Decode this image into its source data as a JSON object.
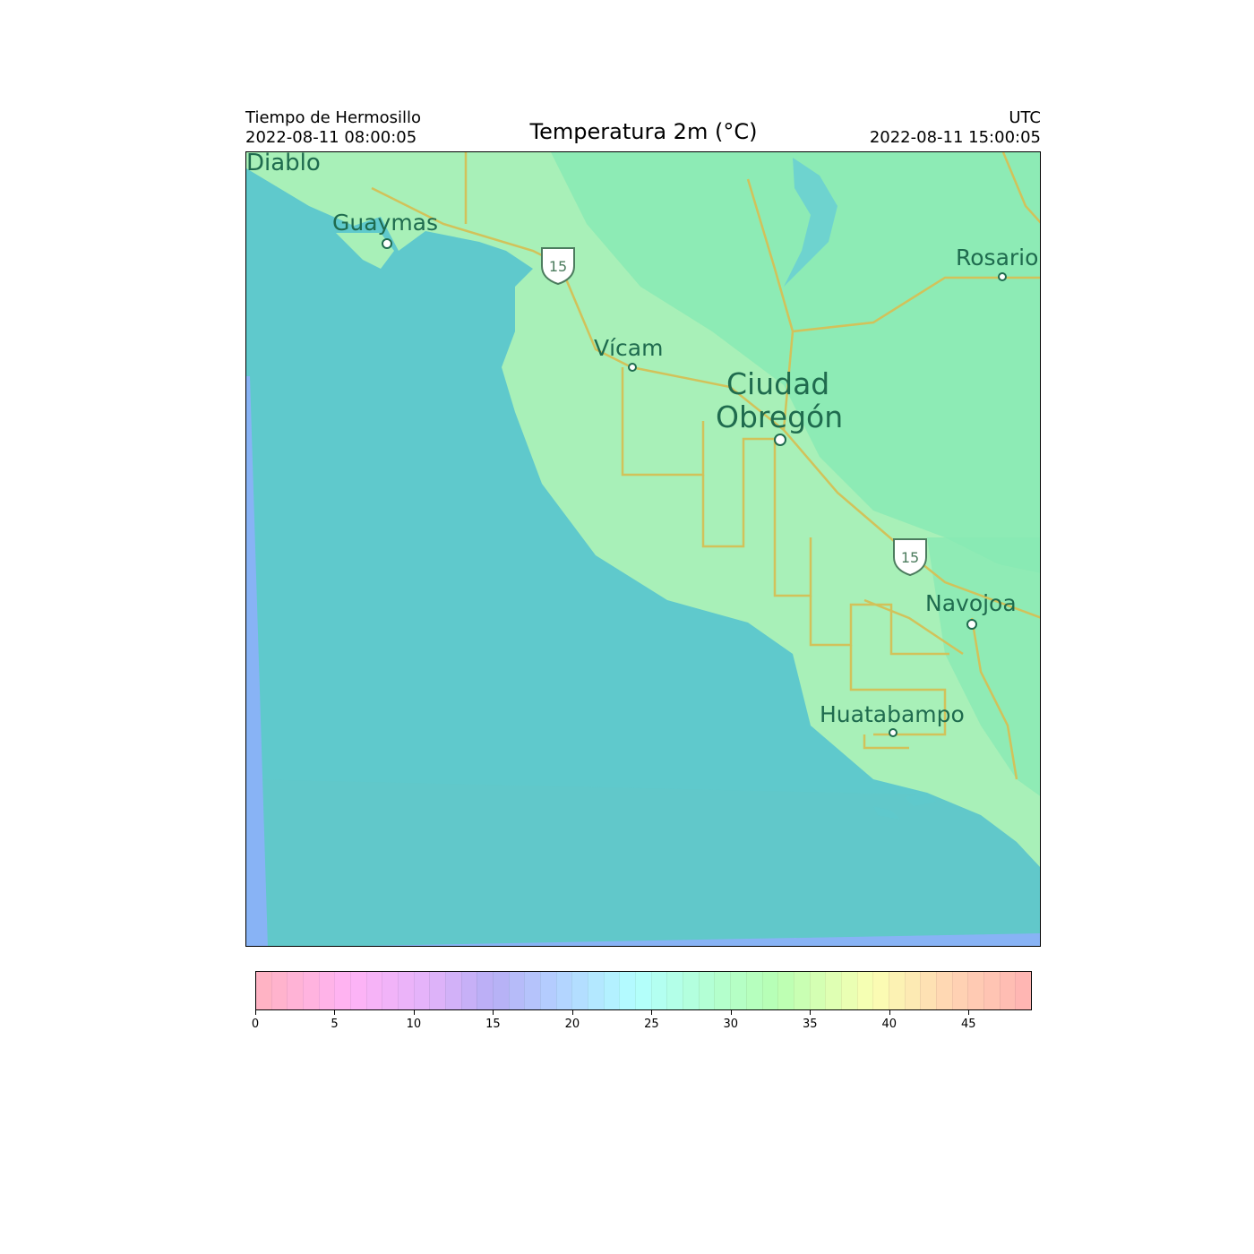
{
  "header": {
    "left_line1": "Tiempo de Hermosillo",
    "left_line2": "2022-08-11 08:00:05",
    "title": "Temperatura 2m (°C)",
    "right_line1": "UTC",
    "right_line2": "2022-08-11 15:00:05"
  },
  "map": {
    "places": [
      {
        "name": "Diablo",
        "icon": "none"
      },
      {
        "name": "Guaymas",
        "icon": "town-dot-icon"
      },
      {
        "name": "Rosario",
        "icon": "town-dot-icon"
      },
      {
        "name": "Vícam",
        "icon": "town-dot-icon"
      },
      {
        "name": "Ciudad",
        "icon": "none"
      },
      {
        "name": "Obregón",
        "icon": "city-dot-icon"
      },
      {
        "name": "Navojoa",
        "icon": "town-dot-icon"
      },
      {
        "name": "Huatabampo",
        "icon": "town-dot-icon"
      }
    ],
    "highway_shields": [
      "15",
      "15"
    ],
    "colors": {
      "sea": "#5fc9cc",
      "sea_edge": "#88b3f5",
      "land": "#a8f0b8",
      "land_warm": "#88eab4",
      "road": "#d2c25a"
    }
  },
  "colorbar": {
    "min": 0,
    "max": 49,
    "step": 1,
    "ticks": [
      "0",
      "5",
      "10",
      "15",
      "20",
      "25",
      "30",
      "35",
      "40",
      "45"
    ],
    "tick_values": [
      0,
      5,
      10,
      15,
      20,
      25,
      30,
      35,
      40,
      45
    ],
    "color_stops": [
      {
        "value": 0,
        "color": "#ffb3bf"
      },
      {
        "value": 6,
        "color": "#ffb3f5"
      },
      {
        "value": 11,
        "color": "#e2b3fa"
      },
      {
        "value": 15,
        "color": "#b7aef5"
      },
      {
        "value": 19,
        "color": "#b3d0ff"
      },
      {
        "value": 24,
        "color": "#b3ffff"
      },
      {
        "value": 29,
        "color": "#b3ffd0"
      },
      {
        "value": 33,
        "color": "#b8ffb3"
      },
      {
        "value": 39,
        "color": "#faffb3"
      },
      {
        "value": 44,
        "color": "#ffd4b3"
      },
      {
        "value": 49,
        "color": "#ffb3b3"
      }
    ]
  }
}
